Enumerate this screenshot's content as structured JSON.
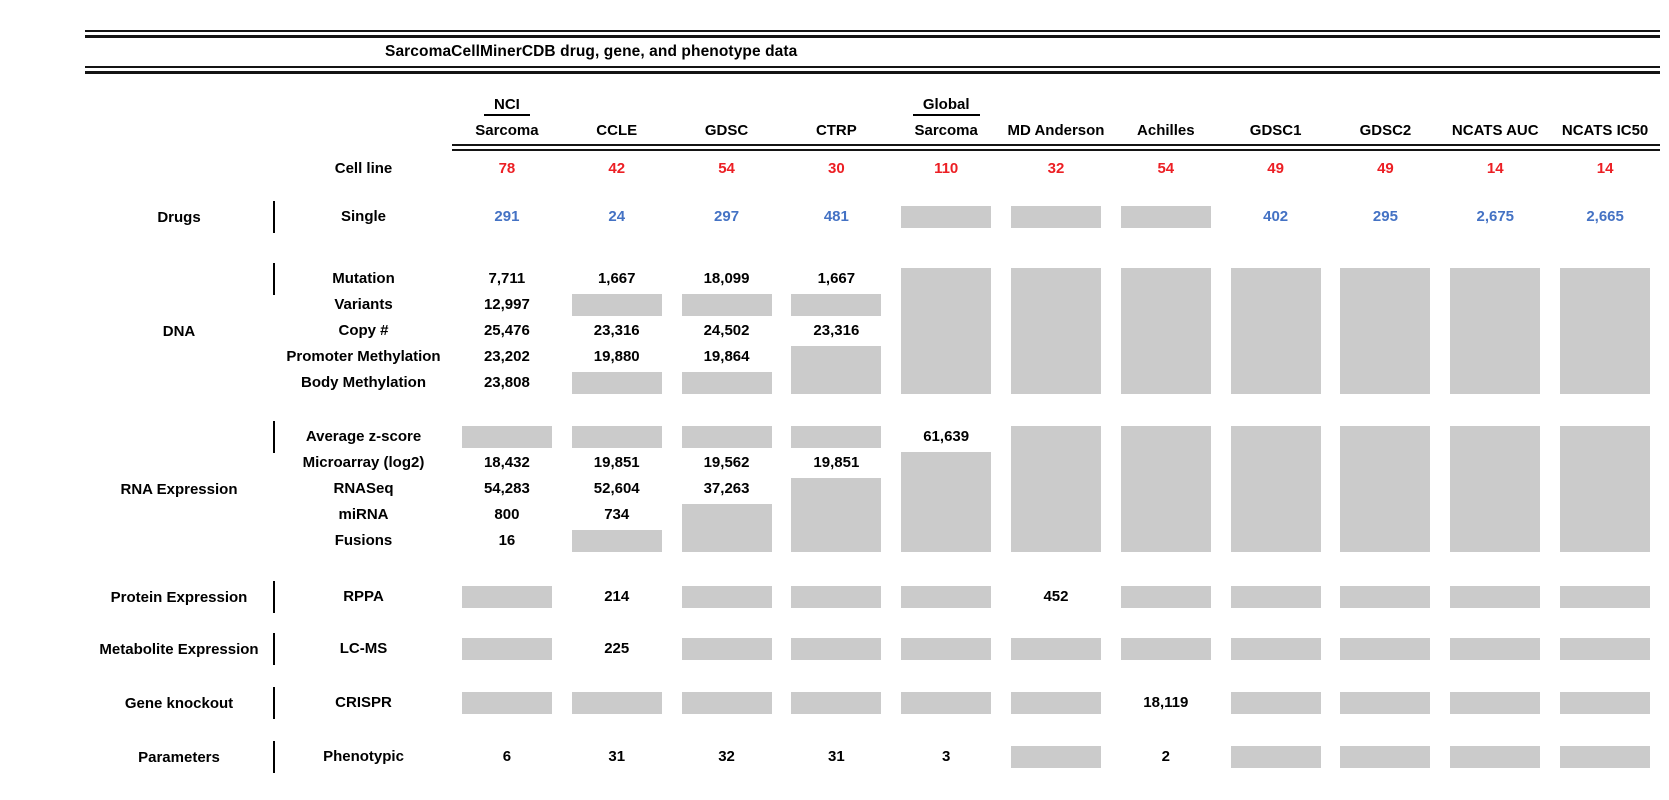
{
  "title": "SarcomaCellMinerCDB drug, gene, and phenotype data",
  "colors": {
    "red": "#ec1f24",
    "blue": "#4472c4",
    "gray_box": "#cbcbcb",
    "text": "#000000"
  },
  "chart_data": {
    "type": "table",
    "title": "SarcomaCellMinerCDB drug, gene, and phenotype data",
    "note": null,
    "columns": [
      {
        "top": "NCI",
        "label": "Sarcoma"
      },
      {
        "top": null,
        "label": "CCLE"
      },
      {
        "top": null,
        "label": "GDSC"
      },
      {
        "top": null,
        "label": "CTRP"
      },
      {
        "top": "Global",
        "label": "Sarcoma"
      },
      {
        "top": null,
        "label": "MD Anderson"
      },
      {
        "top": null,
        "label": "Achilles"
      },
      {
        "top": null,
        "label": "GDSC1"
      },
      {
        "top": null,
        "label": "GDSC2"
      },
      {
        "top": null,
        "label": "NCATS AUC"
      },
      {
        "top": null,
        "label": "NCATS IC50"
      }
    ],
    "cell_line_row": {
      "label": "Cell line",
      "style": "red",
      "values": [
        "78",
        "42",
        "54",
        "30",
        "110",
        "32",
        "54",
        "49",
        "49",
        "14",
        "14"
      ]
    },
    "sections": [
      {
        "category": "Drugs",
        "rows": [
          {
            "label": "Single",
            "style": "blue",
            "values": [
              "291",
              "24",
              "297",
              "481",
              null,
              null,
              null,
              "402",
              "295",
              "2,675",
              "2,665"
            ]
          }
        ]
      },
      {
        "category": "DNA",
        "rows": [
          {
            "label": "Mutation",
            "values": [
              "7,711",
              "1,667",
              "18,099",
              "1,667",
              null,
              null,
              null,
              null,
              null,
              null,
              null
            ]
          },
          {
            "label": "Variants",
            "values": [
              "12,997",
              null,
              null,
              null,
              null,
              null,
              null,
              null,
              null,
              null,
              null
            ]
          },
          {
            "label": "Copy #",
            "values": [
              "25,476",
              "23,316",
              "24,502",
              "23,316",
              null,
              null,
              null,
              null,
              null,
              null,
              null
            ]
          },
          {
            "label": "Promoter Methylation",
            "values": [
              "23,202",
              "19,880",
              "19,864",
              null,
              null,
              null,
              null,
              null,
              null,
              null,
              null
            ]
          },
          {
            "label": "Body Methylation",
            "values": [
              "23,808",
              null,
              null,
              null,
              null,
              null,
              null,
              null,
              null,
              null,
              null
            ]
          }
        ]
      },
      {
        "category": "RNA Expression",
        "rows": [
          {
            "label": "Average z-score",
            "values": [
              null,
              null,
              null,
              null,
              "61,639",
              null,
              null,
              null,
              null,
              null,
              null
            ]
          },
          {
            "label": "Microarray (log2)",
            "values": [
              "18,432",
              "19,851",
              "19,562",
              "19,851",
              null,
              null,
              null,
              null,
              null,
              null,
              null
            ]
          },
          {
            "label": "RNASeq",
            "values": [
              "54,283",
              "52,604",
              "37,263",
              null,
              null,
              null,
              null,
              null,
              null,
              null,
              null
            ]
          },
          {
            "label": "miRNA",
            "values": [
              "800",
              "734",
              null,
              null,
              null,
              null,
              null,
              null,
              null,
              null,
              null
            ]
          },
          {
            "label": "Fusions",
            "values": [
              "16",
              null,
              null,
              null,
              null,
              null,
              null,
              null,
              null,
              null,
              null
            ]
          }
        ]
      },
      {
        "category": "Protein Expression",
        "rows": [
          {
            "label": "RPPA",
            "values": [
              null,
              "214",
              null,
              null,
              null,
              "452",
              null,
              null,
              null,
              null,
              null
            ]
          }
        ]
      },
      {
        "category": "Metabolite Expression",
        "rows": [
          {
            "label": "LC-MS",
            "values": [
              null,
              "225",
              null,
              null,
              null,
              null,
              null,
              null,
              null,
              null,
              null
            ]
          }
        ]
      },
      {
        "category": "Gene knockout",
        "rows": [
          {
            "label": "CRISPR",
            "values": [
              null,
              null,
              null,
              null,
              null,
              null,
              "18,119",
              null,
              null,
              null,
              null
            ]
          }
        ]
      },
      {
        "category": "Parameters",
        "rows": [
          {
            "label": "Phenotypic",
            "values": [
              "6",
              "31",
              "32",
              "31",
              "3",
              null,
              "2",
              null,
              null,
              null,
              null
            ]
          }
        ]
      }
    ]
  }
}
